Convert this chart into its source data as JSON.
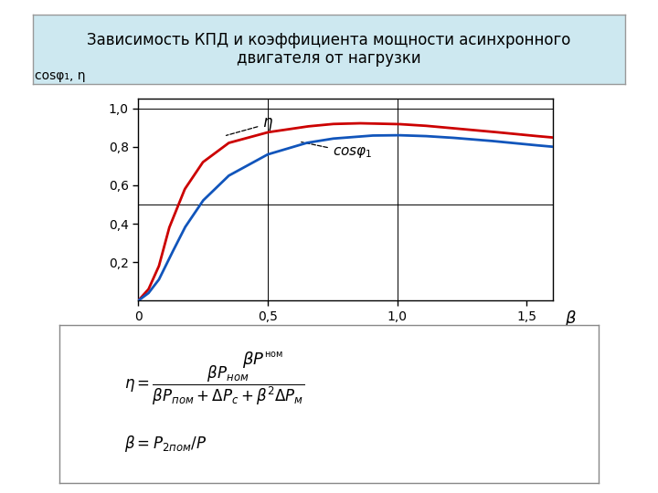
{
  "title": "Зависимость КПД и коэффициента мощности асинхронного\nдвигателя от нагрузки",
  "title_fontsize": 12,
  "ylabel": "cosφ₁, η",
  "xlim": [
    0,
    1.6
  ],
  "ylim": [
    0,
    1.05
  ],
  "xticks": [
    0,
    0.5,
    1.0,
    1.5
  ],
  "yticks": [
    0.2,
    0.4,
    0.6,
    0.8,
    1.0
  ],
  "xtick_labels": [
    "0",
    "0,5",
    "1,0",
    "1,5"
  ],
  "ytick_labels": [
    "0,2",
    "0,4",
    "0,6",
    "0,8",
    "1,0"
  ],
  "eta_color": "#cc0000",
  "cos_color": "#1155bb",
  "background_color": "#ffffff",
  "title_box_color": "#cde8f0",
  "beta_eta_x": [
    0.0,
    0.04,
    0.08,
    0.12,
    0.18,
    0.25,
    0.35,
    0.5,
    0.65,
    0.75,
    0.85,
    1.0,
    1.1,
    1.2,
    1.35,
    1.5,
    1.6
  ],
  "beta_eta_y": [
    0.0,
    0.06,
    0.18,
    0.38,
    0.58,
    0.72,
    0.82,
    0.875,
    0.905,
    0.918,
    0.922,
    0.918,
    0.91,
    0.898,
    0.88,
    0.86,
    0.848
  ],
  "beta_cos_x": [
    0.0,
    0.04,
    0.08,
    0.12,
    0.18,
    0.25,
    0.35,
    0.5,
    0.65,
    0.75,
    0.9,
    1.0,
    1.1,
    1.2,
    1.35,
    1.5,
    1.6
  ],
  "beta_cos_y": [
    0.0,
    0.04,
    0.11,
    0.22,
    0.38,
    0.52,
    0.65,
    0.76,
    0.82,
    0.842,
    0.858,
    0.86,
    0.856,
    0.848,
    0.832,
    0.812,
    0.8
  ]
}
